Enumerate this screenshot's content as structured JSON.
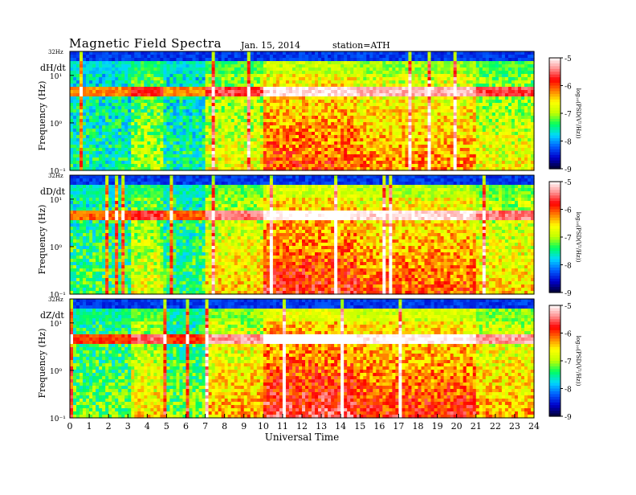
{
  "header": {
    "title": "Magnetic  Field  Spectra",
    "date": "Jan. 15, 2014",
    "station": "station=ATH"
  },
  "chart_data": {
    "type": "heatmap",
    "xlabel": "Universal  Time",
    "x_ticks": [
      "0",
      "1",
      "2",
      "3",
      "4",
      "5",
      "6",
      "7",
      "8",
      "9",
      "10",
      "11",
      "12",
      "13",
      "14",
      "15",
      "16",
      "17",
      "18",
      "19",
      "20",
      "21",
      "22",
      "23",
      "24"
    ],
    "xlim": [
      0,
      24
    ],
    "panels": [
      {
        "name": "dH/dt",
        "ylabel": "Frequency  (Hz)",
        "top_label": "32Hz",
        "y_ticks": [
          "10¹",
          "10⁰",
          "10⁻¹"
        ],
        "ylim": [
          0.1,
          32
        ],
        "y_scale": "log",
        "colorbar": {
          "label": "log₁₀(PSD(V²/Hz))",
          "ticks": [
            "-5",
            "-6",
            "-7",
            "-8",
            "-9"
          ],
          "range": [
            -9,
            -5
          ]
        }
      },
      {
        "name": "dD/dt",
        "ylabel": "Frequency  (Hz)",
        "top_label": "32Hz",
        "y_ticks": [
          "10¹",
          "10⁰",
          "10⁻¹"
        ],
        "ylim": [
          0.1,
          32
        ],
        "y_scale": "log",
        "colorbar": {
          "label": "log₁₀(PSD(V²/Hz))",
          "ticks": [
            "-5",
            "-6",
            "-7",
            "-8",
            "-9"
          ],
          "range": [
            -9,
            -5
          ]
        }
      },
      {
        "name": "dZ/dt",
        "ylabel": "Frequency  (Hz)",
        "top_label": "32Hz",
        "y_ticks": [
          "10¹",
          "10⁰",
          "10⁻¹"
        ],
        "ylim": [
          0.1,
          32
        ],
        "y_scale": "log",
        "colorbar": {
          "label": "log₁₀(PSD(V²/Hz))",
          "ticks": [
            "-5",
            "-6",
            "-7",
            "-8",
            "-9"
          ],
          "range": [
            -9,
            -5
          ]
        }
      }
    ],
    "colormap": [
      "#000033",
      "#0000cc",
      "#0060ff",
      "#00d8ff",
      "#00ff60",
      "#c0ff00",
      "#ffff00",
      "#ff8000",
      "#ff0000",
      "#ff9090",
      "#ffffff"
    ]
  }
}
